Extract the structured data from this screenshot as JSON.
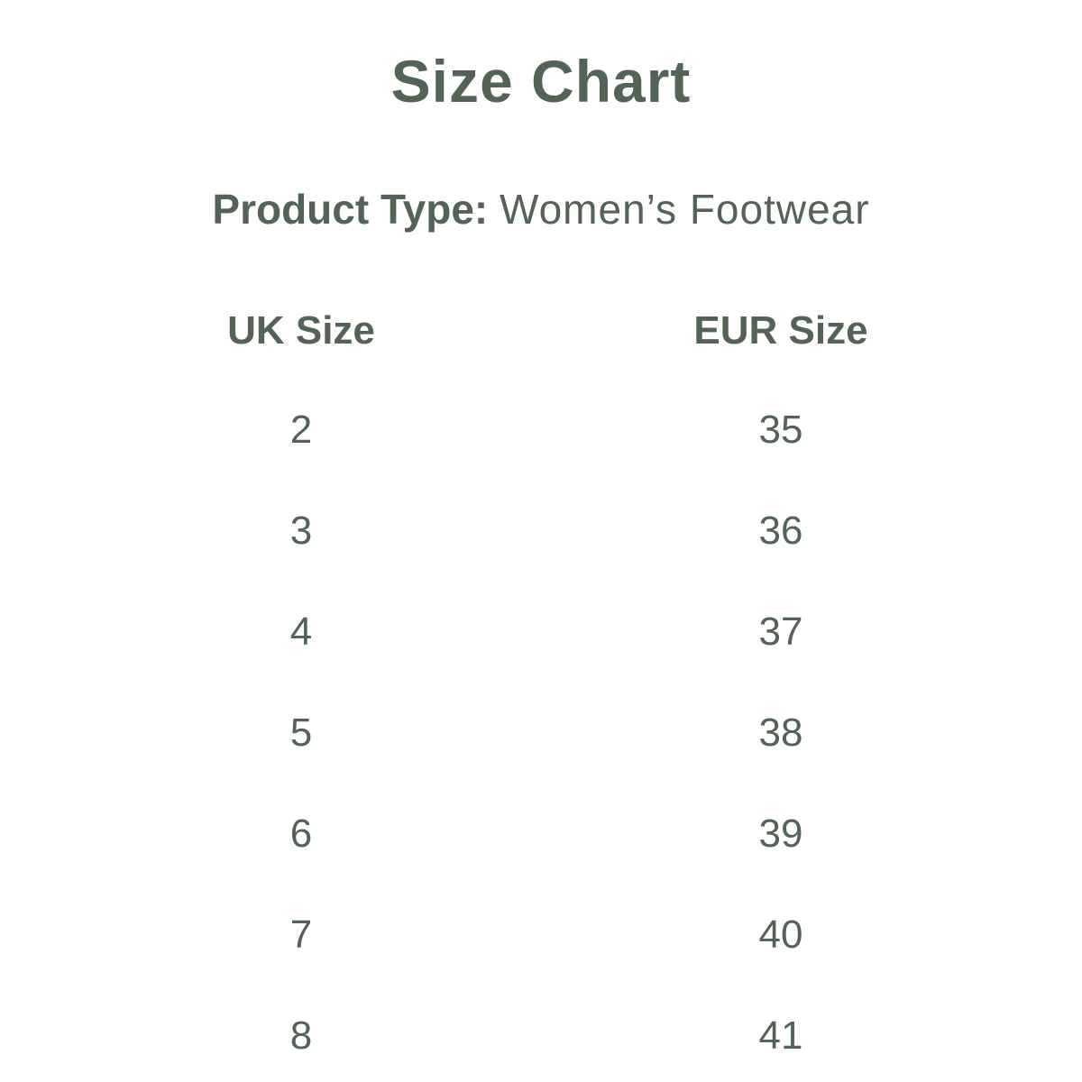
{
  "title": "Size Chart",
  "product_type": {
    "label": "Product Type:",
    "value": "Women’s Footwear"
  },
  "table": {
    "headers": [
      "UK Size",
      "EUR Size"
    ],
    "rows": [
      [
        "2",
        "35"
      ],
      [
        "3",
        "36"
      ],
      [
        "4",
        "37"
      ],
      [
        "5",
        "38"
      ],
      [
        "6",
        "39"
      ],
      [
        "7",
        "40"
      ],
      [
        "8",
        "41"
      ]
    ]
  },
  "colors": {
    "text": "#536456",
    "background": "#ffffff"
  }
}
